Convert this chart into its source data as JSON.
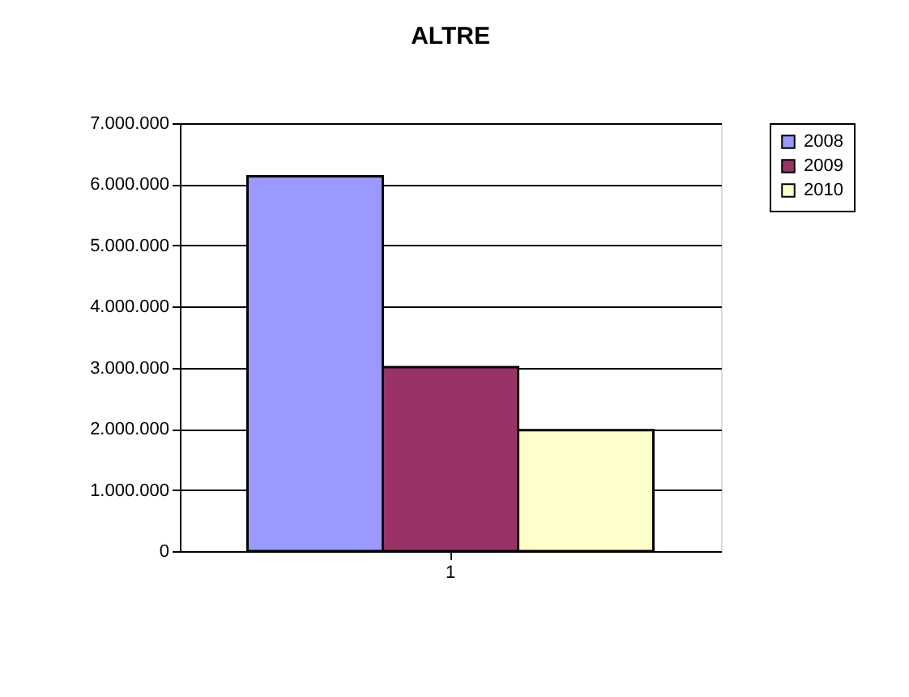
{
  "chart_data": {
    "type": "bar",
    "title": "ALTRE",
    "categories": [
      "1"
    ],
    "series": [
      {
        "name": "2008",
        "color": "#9999ff",
        "values": [
          6130000
        ]
      },
      {
        "name": "2009",
        "color": "#993366",
        "values": [
          3010000
        ]
      },
      {
        "name": "2010",
        "color": "#ffffcc",
        "values": [
          1980000
        ]
      }
    ],
    "ylim": [
      0,
      7000000
    ],
    "yticks": [
      {
        "value": 0,
        "label": "0"
      },
      {
        "value": 1000000,
        "label": "1.000.000"
      },
      {
        "value": 2000000,
        "label": "2.000.000"
      },
      {
        "value": 3000000,
        "label": "3.000.000"
      },
      {
        "value": 4000000,
        "label": "4.000.000"
      },
      {
        "value": 5000000,
        "label": "5.000.000"
      },
      {
        "value": 6000000,
        "label": "6.000.000"
      },
      {
        "value": 7000000,
        "label": "7.000.000"
      }
    ],
    "grid": "y",
    "legend": "right"
  }
}
